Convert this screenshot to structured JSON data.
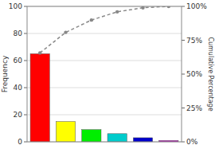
{
  "chart_data": {
    "type": "bar",
    "categories": [
      null,
      null,
      null,
      null,
      null,
      null
    ],
    "series": [
      {
        "type": "bar",
        "colors": [
          "#ff0000",
          "#ffff00",
          "#00ee00",
          "#00cccc",
          "#0000cc",
          "#cc00cc"
        ],
        "values": [
          65,
          15,
          9,
          6,
          3,
          1
        ]
      },
      {
        "type": "line",
        "axis": "y2",
        "color": "#888888",
        "marker": "circle",
        "line_style": "dashed",
        "values": [
          65.65,
          80.81,
          89.9,
          95.96,
          98.99,
          100.0
        ]
      }
    ],
    "ylabel": "Frequency",
    "y2label": "Cumulative Percentage",
    "ylim": [
      0,
      100
    ],
    "yticks": [
      0,
      20,
      40,
      60,
      80,
      100
    ],
    "y2lim": [
      0,
      100
    ],
    "y2ticks": [
      {
        "value": 0,
        "label": "0%"
      },
      {
        "value": 25,
        "label": "25%"
      },
      {
        "value": 50,
        "label": "50%"
      },
      {
        "value": 75,
        "label": "75%"
      },
      {
        "value": 100,
        "label": "100%"
      }
    ],
    "grid": true,
    "tick_labels": "y"
  }
}
